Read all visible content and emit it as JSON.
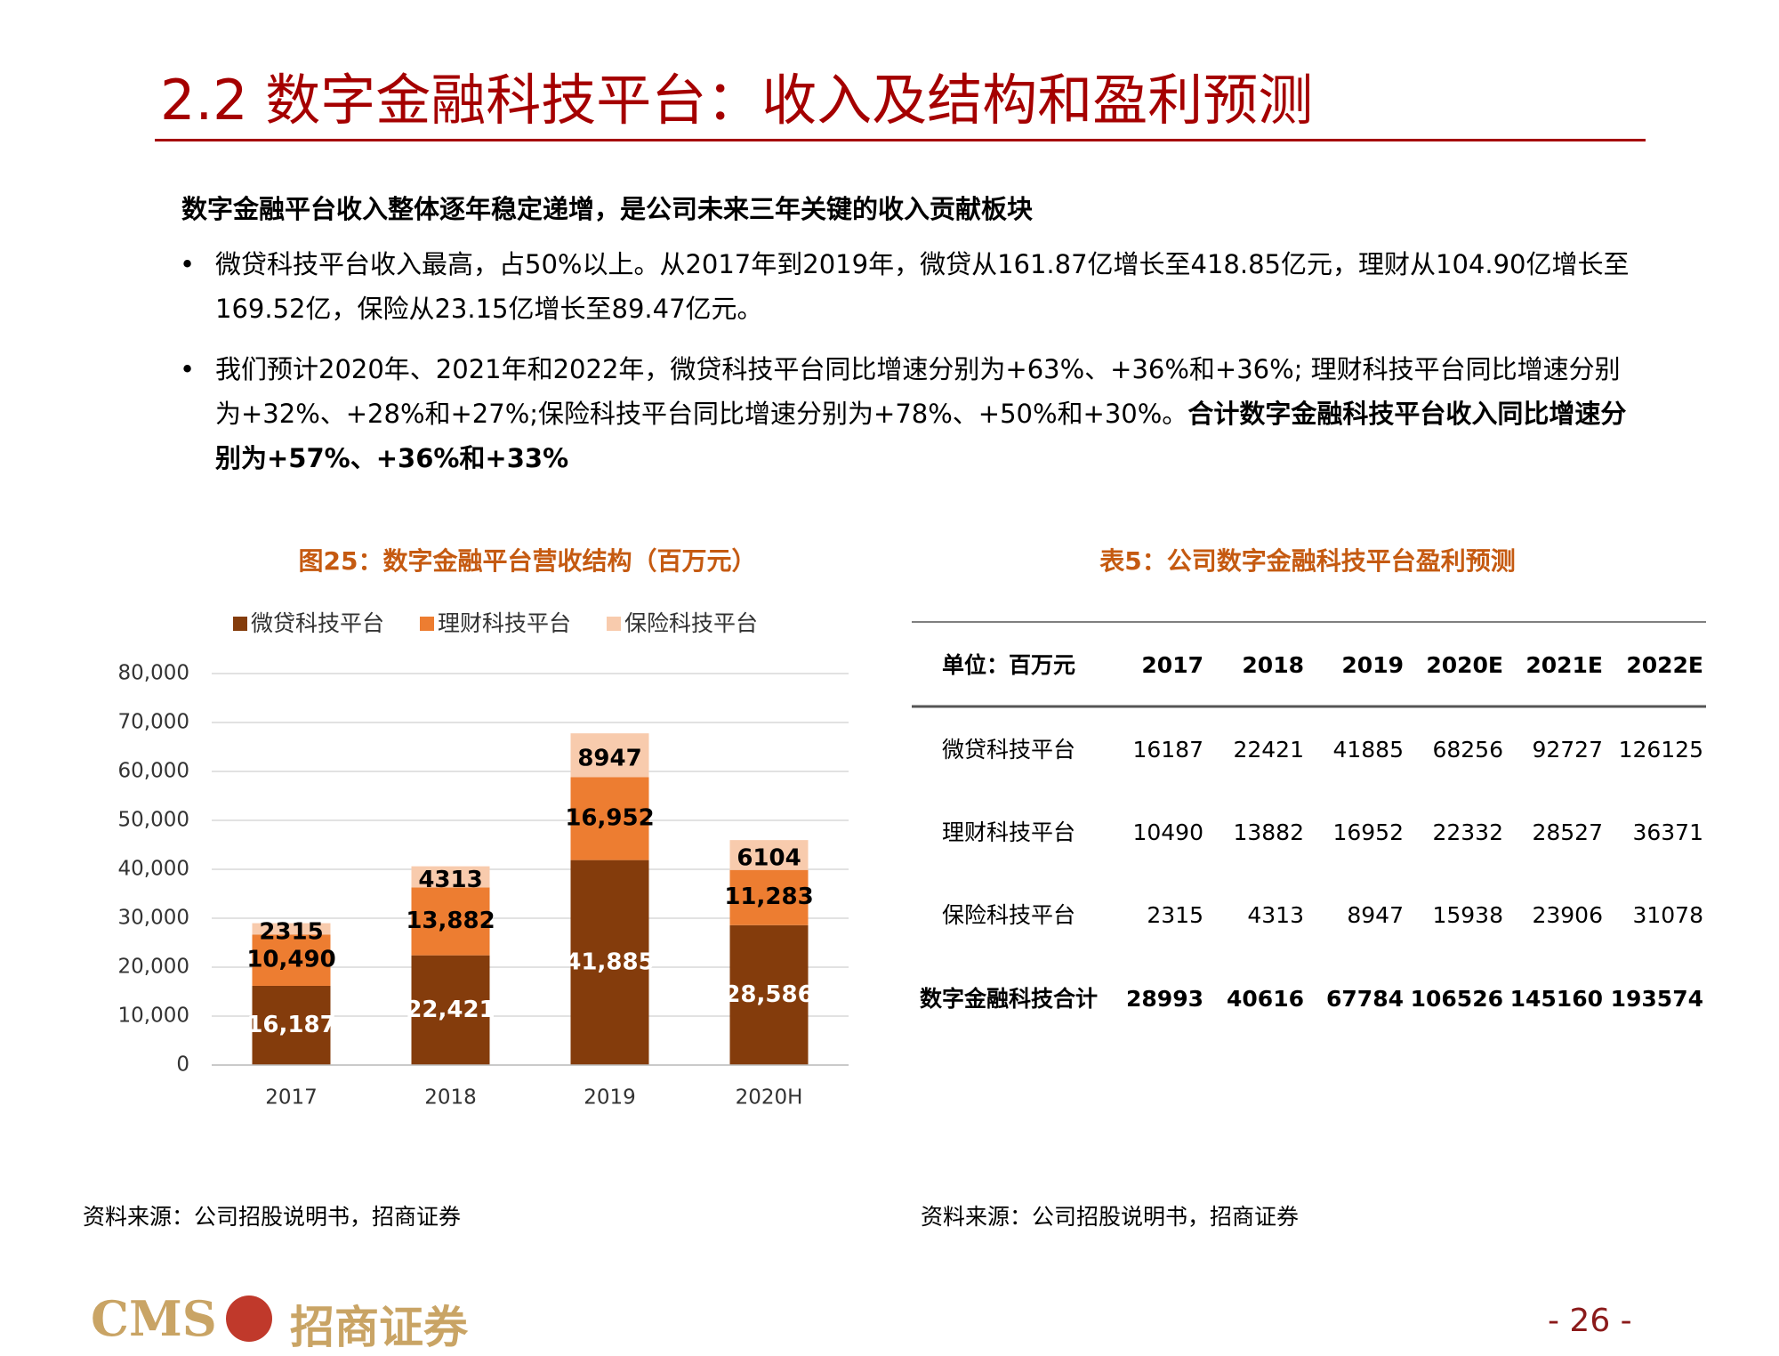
{
  "header": {
    "title": "2.2 数字金融科技平台：收入及结构和盈利预测"
  },
  "intro": "数字金融平台收入整体逐年稳定递增，是公司未来三年关键的收入贡献板块",
  "bullets": [
    [
      "微贷科技平台收入最高，占50%以上。从2017年到2019年，微贷从161.87亿增长至418.85亿元，理财从104.90亿增长至169.52亿，保险从23.15亿增长至89.47亿元。"
    ],
    [
      "我们预计2020年、2021年和2022年，微贷科技平台同比增速分别为+63%、+36%和+36%; 理财科技平台同比增速分别为+32%、+28%和+27%;保险科技平台同比增速分别为+78%、+50%和+30%。",
      "合计数字金融科技平台收入同比增速分别为+57%、+36%和+33%"
    ]
  ],
  "chart_data": {
    "type": "bar",
    "stacked": true,
    "title": "图25：数字金融平台营收结构（百万元）",
    "categories": [
      "2017",
      "2018",
      "2019",
      "2020H"
    ],
    "series": [
      {
        "name": "微贷科技平台",
        "color": "#843c0c",
        "values": [
          16187,
          22421,
          41885,
          28586
        ],
        "value_labels": [
          "16,187",
          "22,421",
          "41,885",
          "28,586"
        ]
      },
      {
        "name": "理财科技平台",
        "color": "#ed7d31",
        "values": [
          10490,
          13882,
          16952,
          11283
        ],
        "value_labels": [
          "10,490",
          "13,882",
          "16,952",
          "11,283"
        ]
      },
      {
        "name": "保险科技平台",
        "color": "#f8cbad",
        "values": [
          2315,
          4313,
          8947,
          6104
        ]
      }
    ],
    "ylim": [
      0,
      80000
    ],
    "yticks": [
      0,
      {
        "value": 10000,
        "label": "10,000"
      },
      {
        "value": 20000,
        "label": "20,000"
      },
      {
        "value": 30000,
        "label": "30,000"
      },
      {
        "value": 40000,
        "label": "40,000"
      },
      {
        "value": 50000,
        "label": "50,000"
      },
      {
        "value": 60000,
        "label": "60,000"
      },
      {
        "value": 70000,
        "label": "70,000"
      },
      {
        "value": 80000,
        "label": "80,000"
      }
    ],
    "grid": true,
    "legend": "top"
  },
  "table": {
    "title": "表5：公司数字金融科技平台盈利预测",
    "header": [
      "单位：百万元",
      "2017",
      "2018",
      "2019",
      "2020E",
      "2021E",
      "2022E"
    ],
    "rows": [
      [
        "微贷科技平台",
        16187,
        22421,
        41885,
        68256,
        92727,
        126125
      ],
      [
        "理财科技平台",
        10490,
        13882,
        16952,
        22332,
        28527,
        36371
      ],
      [
        "保险科技平台",
        2315,
        4313,
        8947,
        15938,
        23906,
        31078
      ],
      [
        "数字金融科技合计",
        28993,
        40616,
        67784,
        106526,
        145160,
        193574
      ]
    ]
  },
  "sources": [
    "资料来源：公司招股说明书，招商证券",
    "资料来源：公司招股说明书，招商证券"
  ],
  "footer": {
    "logo_text": "CMS",
    "logo_name": "招商证券",
    "page": "- 26 -"
  }
}
